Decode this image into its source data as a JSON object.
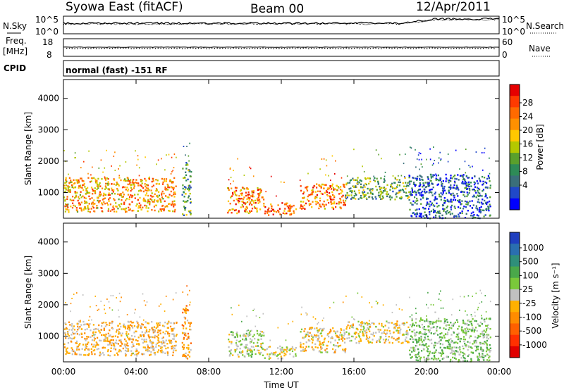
{
  "header": {
    "station": "Syowa East (fitACF)",
    "beam": "Beam 00",
    "date": "12/Apr/2011"
  },
  "strip": {
    "nsky_label": "N.Sky",
    "nsearch_label": "N.Search",
    "nsky_ticks": [
      "10^5",
      "10^0"
    ],
    "nsearch_ticks": [
      "10^5",
      "10^0"
    ],
    "freq_label_1": "Freq.",
    "freq_label_2": "[MHz]",
    "freq_ticks": [
      "18",
      "8"
    ],
    "nave_label": "Nave",
    "nave_ticks": [
      "60",
      "0"
    ],
    "cpid_label": "CPID",
    "cpid_text": "normal (fast) -151 RF"
  },
  "time_axis": {
    "xlabel": "Time UT",
    "ticks": [
      "00:00",
      "04:00",
      "08:00",
      "12:00",
      "16:00",
      "20:00",
      "00:00"
    ]
  },
  "power_colorbar": {
    "label": "Power [dB]",
    "ticks": [
      "28",
      "24",
      "20",
      "16",
      "12",
      "8",
      "4"
    ],
    "colors": [
      "#0000ff",
      "#2048c8",
      "#3a6f7a",
      "#2e8b57",
      "#5aa02c",
      "#b4c800",
      "#ffc800",
      "#ff9000",
      "#ff6a00",
      "#ff3a00",
      "#e60000"
    ]
  },
  "velocity_colorbar": {
    "label": "Velocity [m s⁻¹]",
    "ticks": [
      "1000",
      "500",
      "100",
      "25",
      "-25",
      "-100",
      "-500",
      "-1000"
    ],
    "colors": [
      "#1f3fbf",
      "#2a6fb0",
      "#2f8f7a",
      "#4aa84a",
      "#7ac83a",
      "#c0c0c0",
      "#ffb000",
      "#ff8c00",
      "#ff6000",
      "#ff3000",
      "#e00000"
    ]
  },
  "chart_data": [
    {
      "type": "heatmap",
      "name": "power",
      "ylabel": "Slant Range [km]",
      "yticks": [
        "1000",
        "2000",
        "3000",
        "4000"
      ],
      "ylim": [
        180,
        4600
      ],
      "xlim": [
        "00:00",
        "24:00"
      ],
      "colorbar_label": "Power [dB]",
      "zlim": [
        0,
        30
      ],
      "echo_regions": [
        {
          "t_start": 0.0,
          "t_end": 6.2,
          "range_low": 400,
          "range_high": 1500,
          "value": 20
        },
        {
          "t_start": 6.5,
          "t_end": 7.0,
          "range_low": 300,
          "range_high": 2000,
          "value": 10
        },
        {
          "t_start": 9.0,
          "t_end": 11.0,
          "range_low": 350,
          "range_high": 1200,
          "value": 22
        },
        {
          "t_start": 11.0,
          "t_end": 12.8,
          "range_low": 300,
          "range_high": 700,
          "value": 24
        },
        {
          "t_start": 13.0,
          "t_end": 15.5,
          "range_low": 500,
          "range_high": 1300,
          "value": 22
        },
        {
          "t_start": 15.5,
          "t_end": 19.0,
          "range_low": 800,
          "range_high": 1500,
          "value": 12
        },
        {
          "t_start": 19.0,
          "t_end": 23.5,
          "range_low": 200,
          "range_high": 1600,
          "value": 6
        }
      ]
    },
    {
      "type": "heatmap",
      "name": "velocity",
      "ylabel": "Slant Range [km]",
      "yticks": [
        "1000",
        "2000",
        "3000",
        "4000"
      ],
      "ylim": [
        180,
        4600
      ],
      "xlim": [
        "00:00",
        "24:00"
      ],
      "colorbar_label": "Velocity [m s⁻¹]",
      "zlim": [
        -1000,
        1000
      ],
      "echo_regions": [
        {
          "t_start": 0.0,
          "t_end": 6.2,
          "range_low": 400,
          "range_high": 1500,
          "value": -150
        },
        {
          "t_start": 6.5,
          "t_end": 7.0,
          "range_low": 300,
          "range_high": 2000,
          "value": -300
        },
        {
          "t_start": 9.0,
          "t_end": 11.0,
          "range_low": 350,
          "range_high": 1200,
          "value": 80
        },
        {
          "t_start": 11.0,
          "t_end": 12.8,
          "range_low": 300,
          "range_high": 700,
          "value": 0
        },
        {
          "t_start": 13.0,
          "t_end": 15.5,
          "range_low": 500,
          "range_high": 1300,
          "value": -120
        },
        {
          "t_start": 15.5,
          "t_end": 19.0,
          "range_low": 800,
          "range_high": 1500,
          "value": -80
        },
        {
          "t_start": 19.0,
          "t_end": 23.5,
          "range_low": 200,
          "range_high": 1600,
          "value": 200
        }
      ]
    }
  ]
}
